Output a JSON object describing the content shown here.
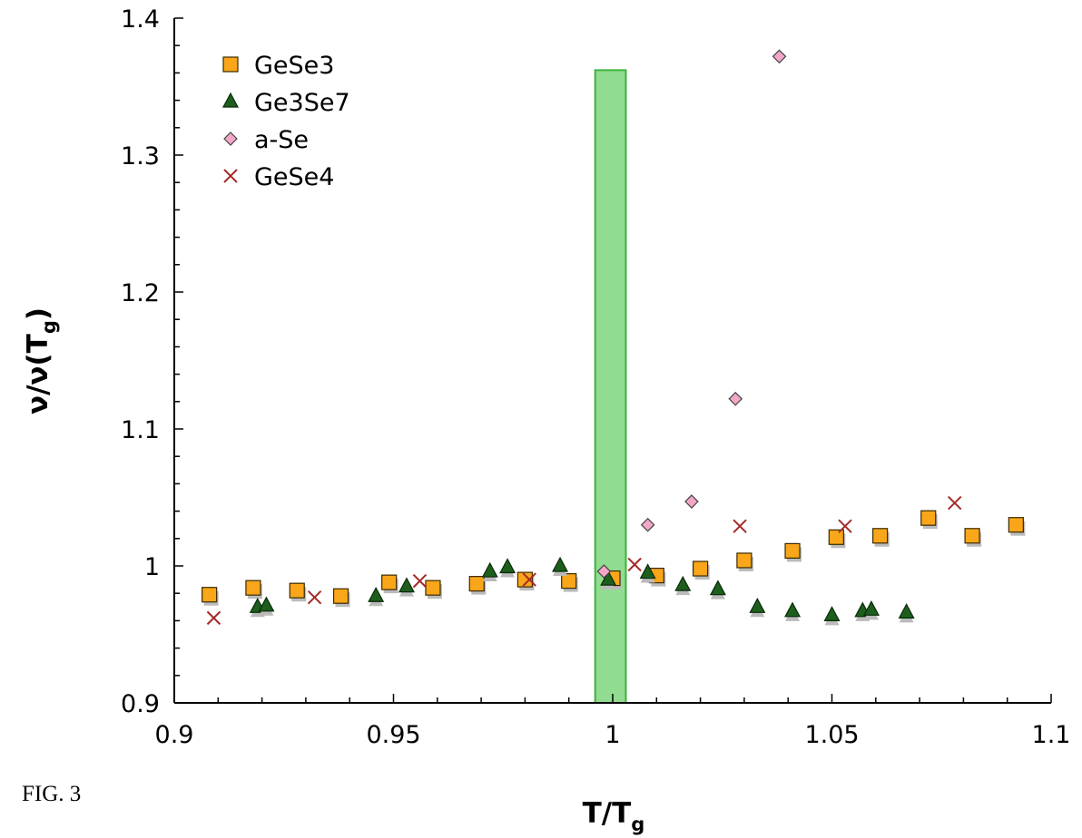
{
  "figure_label": "FIG. 3",
  "chart_data": {
    "type": "scatter",
    "title": "",
    "xlabel": "T/T",
    "xlabel_sub": "g",
    "ylabel": "ν/ν(T",
    "ylabel_sub": "g",
    "ylabel_close": ")",
    "xlim": [
      0.9,
      1.1
    ],
    "ylim": [
      0.9,
      1.4
    ],
    "x_ticks": [
      {
        "value": 0.9,
        "label": "0.9"
      },
      {
        "value": 0.95,
        "label": "0.95"
      },
      {
        "value": 1.0,
        "label": "1"
      },
      {
        "value": 1.05,
        "label": "1.05"
      },
      {
        "value": 1.1,
        "label": "1.1"
      }
    ],
    "y_ticks": [
      {
        "value": 0.9,
        "label": "0.9"
      },
      {
        "value": 1.0,
        "label": "1"
      },
      {
        "value": 1.1,
        "label": "1.1"
      },
      {
        "value": 1.2,
        "label": "1.2"
      },
      {
        "value": 1.3,
        "label": "1.3"
      },
      {
        "value": 1.4,
        "label": "1.4"
      }
    ],
    "grid": false,
    "legend_position": "top-left",
    "highlight_band": {
      "x_range": [
        0.996,
        1.003
      ],
      "y_range": [
        0.9,
        1.362
      ],
      "color": "#7ed67e",
      "edge": "#3bb43b"
    },
    "series": [
      {
        "name": "GeSe3",
        "marker": "square",
        "color": "#f9a61a",
        "points": [
          [
            0.908,
            0.979
          ],
          [
            0.918,
            0.984
          ],
          [
            0.928,
            0.982
          ],
          [
            0.938,
            0.978
          ],
          [
            0.949,
            0.988
          ],
          [
            0.959,
            0.984
          ],
          [
            0.969,
            0.987
          ],
          [
            0.98,
            0.99
          ],
          [
            0.99,
            0.989
          ],
          [
            1.0,
            0.991
          ],
          [
            1.01,
            0.993
          ],
          [
            1.02,
            0.998
          ],
          [
            1.03,
            1.004
          ],
          [
            1.041,
            1.011
          ],
          [
            1.051,
            1.021
          ],
          [
            1.061,
            1.022
          ],
          [
            1.072,
            1.035
          ],
          [
            1.082,
            1.022
          ],
          [
            1.092,
            1.03
          ]
        ]
      },
      {
        "name": "Ge3Se7",
        "marker": "triangle",
        "color": "#1d5e1d",
        "points": [
          [
            0.919,
            0.97
          ],
          [
            0.921,
            0.971
          ],
          [
            0.946,
            0.978
          ],
          [
            0.953,
            0.985
          ],
          [
            0.972,
            0.996
          ],
          [
            0.976,
            0.999
          ],
          [
            0.988,
            1.0
          ],
          [
            0.999,
            0.99
          ],
          [
            1.008,
            0.995
          ],
          [
            1.016,
            0.986
          ],
          [
            1.024,
            0.983
          ],
          [
            1.033,
            0.97
          ],
          [
            1.041,
            0.967
          ],
          [
            1.05,
            0.964
          ],
          [
            1.057,
            0.967
          ],
          [
            1.059,
            0.968
          ],
          [
            1.067,
            0.966
          ]
        ]
      },
      {
        "name": "a-Se",
        "marker": "diamond",
        "color": "#f4a6c8",
        "points": [
          [
            0.998,
            0.996
          ],
          [
            1.008,
            1.03
          ],
          [
            1.018,
            1.047
          ],
          [
            1.028,
            1.122
          ],
          [
            1.038,
            1.372
          ]
        ]
      },
      {
        "name": "GeSe4",
        "marker": "cross",
        "color": "#a52a2a",
        "points": [
          [
            0.909,
            0.962
          ],
          [
            0.932,
            0.977
          ],
          [
            0.956,
            0.989
          ],
          [
            0.981,
            0.99
          ],
          [
            1.005,
            1.001
          ],
          [
            1.029,
            1.029
          ],
          [
            1.053,
            1.029
          ],
          [
            1.078,
            1.046
          ]
        ]
      }
    ]
  }
}
